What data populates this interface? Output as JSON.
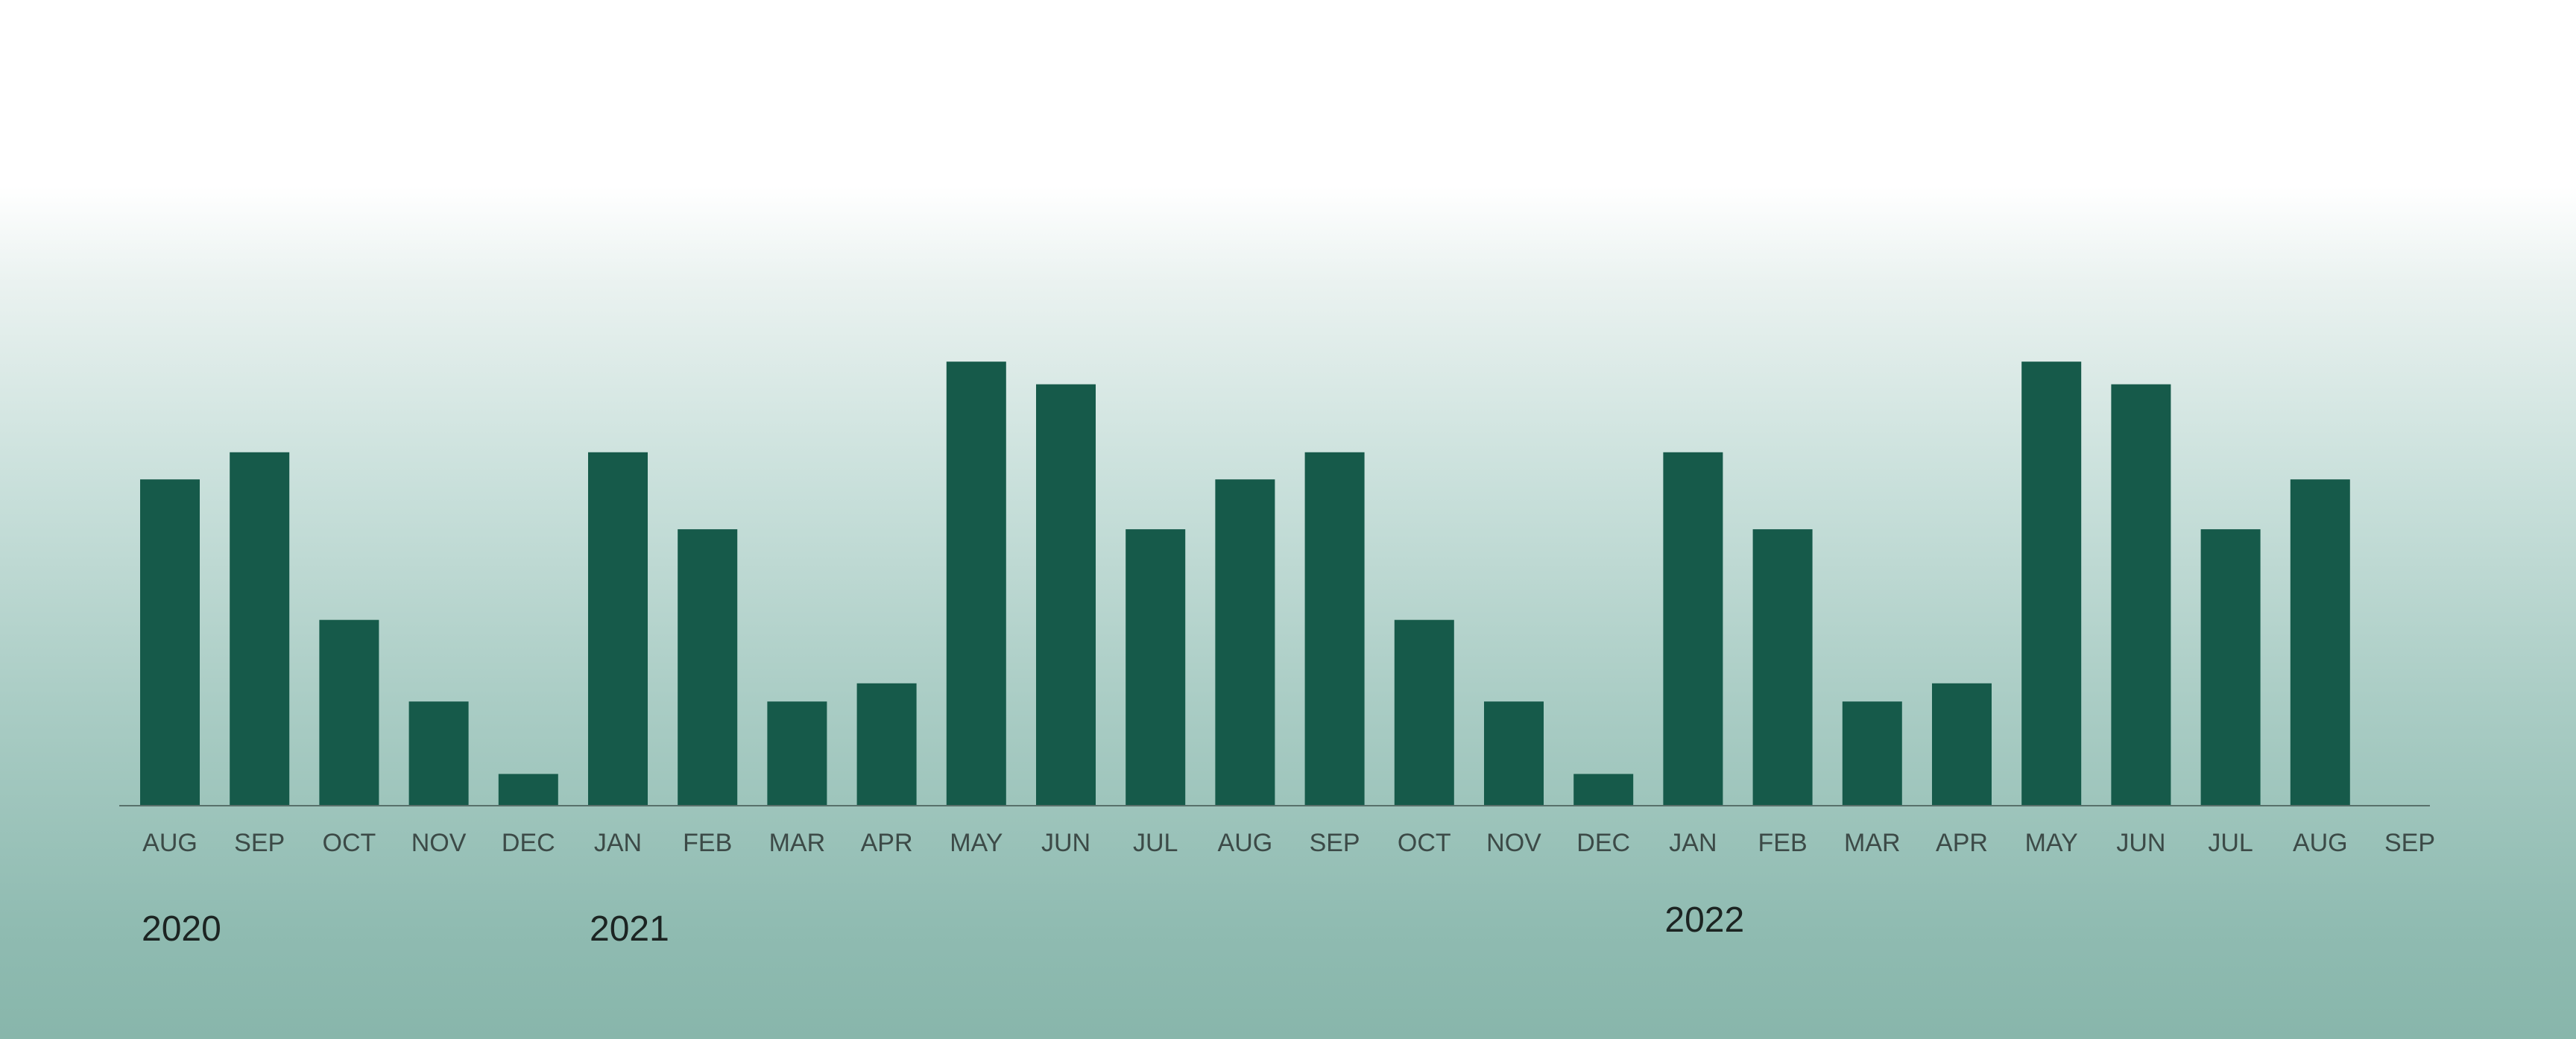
{
  "chart_data": {
    "type": "bar",
    "title": "",
    "xlabel": "",
    "ylabel": "",
    "categories": [
      "AUG",
      "SEP",
      "OCT",
      "NOV",
      "DEC",
      "JAN",
      "FEB",
      "MAR",
      "APR",
      "MAY",
      "JUN",
      "JUL",
      "AUG",
      "SEP",
      "OCT",
      "NOV",
      "DEC",
      "JAN",
      "FEB",
      "MAR",
      "APR",
      "MAY",
      "JUN",
      "JUL",
      "AUG",
      "SEP"
    ],
    "values": [
      72,
      78,
      41,
      23,
      7,
      78,
      61,
      23,
      27,
      98,
      93,
      61,
      72,
      78,
      41,
      23,
      7,
      78,
      61,
      23,
      27,
      98,
      93,
      61,
      72,
      null
    ],
    "ylim": [
      0,
      100
    ],
    "year_labels": [
      {
        "text": "2020",
        "category_index": 0
      },
      {
        "text": "2021",
        "category_index": 5
      },
      {
        "text": "2022",
        "category_index": 17
      }
    ],
    "grid": false,
    "legend": "none",
    "colors": {
      "bar": "#165a4a"
    }
  }
}
